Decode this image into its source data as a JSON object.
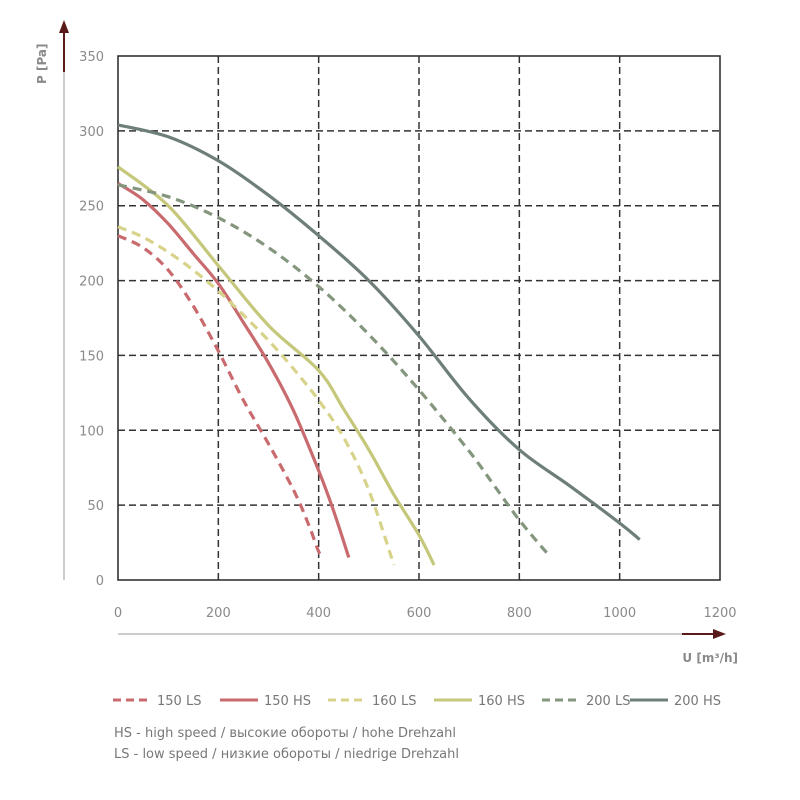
{
  "chart_data": {
    "type": "line",
    "xlabel": "U [m³/h]",
    "ylabel": "P [Pa]",
    "xlim": [
      0,
      1200
    ],
    "ylim": [
      0,
      350
    ],
    "x_ticks": [
      "0",
      "200",
      "400",
      "600",
      "800",
      "1000",
      "1200"
    ],
    "y_ticks": [
      "0",
      "50",
      "100",
      "150",
      "200",
      "250",
      "300",
      "350"
    ],
    "grid": true,
    "legend_position": "bottom",
    "series": [
      {
        "name": "150 LS",
        "color": "#c96b6e",
        "dashed": true,
        "x": [
          0,
          50,
          100,
          150,
          200,
          250,
          300,
          350,
          380,
          400,
          410
        ],
        "y": [
          230,
          222,
          207,
          183,
          153,
          120,
          91,
          60,
          37,
          19,
          15
        ]
      },
      {
        "name": "150 HS",
        "color": "#c96b6e",
        "dashed": false,
        "x": [
          0,
          50,
          100,
          150,
          200,
          250,
          300,
          350,
          400,
          430,
          460
        ],
        "y": [
          265,
          254,
          238,
          218,
          198,
          172,
          145,
          113,
          73,
          46,
          15
        ]
      },
      {
        "name": "160 LS",
        "color": "#d8d38a",
        "dashed": true,
        "x": [
          0,
          50,
          100,
          150,
          200,
          250,
          300,
          350,
          400,
          450,
          500,
          550
        ],
        "y": [
          236,
          229,
          219,
          207,
          193,
          177,
          160,
          141,
          120,
          95,
          60,
          10
        ]
      },
      {
        "name": "160 HS",
        "color": "#c5c77a",
        "dashed": false,
        "x": [
          0,
          100,
          200,
          300,
          400,
          450,
          500,
          550,
          600,
          630
        ],
        "y": [
          276,
          250,
          210,
          170,
          140,
          114,
          87,
          57,
          30,
          10
        ]
      },
      {
        "name": "200 LS",
        "color": "#84967e",
        "dashed": true,
        "x": [
          0,
          100,
          200,
          300,
          400,
          500,
          600,
          700,
          750,
          800,
          850,
          860
        ],
        "y": [
          264,
          256,
          242,
          222,
          196,
          164,
          127,
          86,
          63,
          40,
          20,
          17
        ]
      },
      {
        "name": "200 HS",
        "color": "#6d7f77",
        "dashed": false,
        "x": [
          0,
          100,
          200,
          300,
          400,
          500,
          600,
          700,
          800,
          900,
          1000,
          1040
        ],
        "y": [
          304,
          296,
          280,
          257,
          230,
          200,
          163,
          121,
          87,
          63,
          38,
          27
        ]
      }
    ]
  },
  "notes": {
    "hs": "HS -  high speed / высокие обороты / hohe Drehzahl",
    "ls": "LS - low speed / низкие обороты / niedrige Drehzahl"
  }
}
